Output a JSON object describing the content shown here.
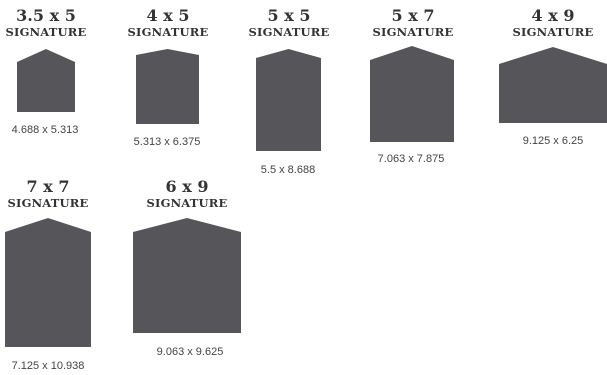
{
  "colors": {
    "shape_fill": "#56565a",
    "text": "#333333"
  },
  "items": [
    {
      "size": "3.5 x 5",
      "series": "SIGNATURE",
      "dimensions": "4.688 x 5.313"
    },
    {
      "size": "4 x 5",
      "series": "SIGNATURE",
      "dimensions": "5.313 x 6.375"
    },
    {
      "size": "5 x 5",
      "series": "SIGNATURE",
      "dimensions": "5.5 x 8.688"
    },
    {
      "size": "5 x 7",
      "series": "SIGNATURE",
      "dimensions": "7.063 x 7.875"
    },
    {
      "size": "4 x 9",
      "series": "SIGNATURE",
      "dimensions": "9.125 x 6.25"
    },
    {
      "size": "7 x 7",
      "series": "SIGNATURE",
      "dimensions": "7.125 x 10.938"
    },
    {
      "size": "6 x 9",
      "series": "SIGNATURE",
      "dimensions": "9.063 x 9.625"
    }
  ]
}
